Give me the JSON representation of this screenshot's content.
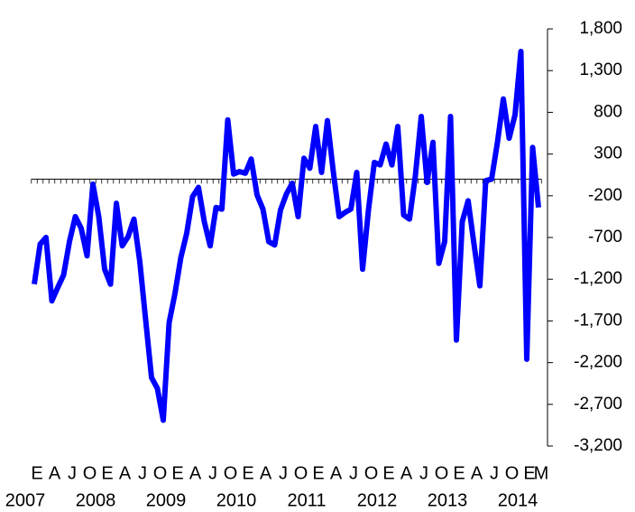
{
  "chart_data": {
    "type": "line",
    "categories": [
      "E",
      null,
      null,
      "A",
      null,
      null,
      "J",
      null,
      null,
      "O",
      null,
      null,
      "E",
      null,
      null,
      "A",
      null,
      null,
      "J",
      null,
      null,
      "O",
      null,
      null,
      "E",
      null,
      null,
      "A",
      null,
      null,
      "J",
      null,
      null,
      "O",
      null,
      null,
      "E",
      null,
      null,
      "A",
      null,
      null,
      "J",
      null,
      null,
      "O",
      null,
      null,
      "E",
      null,
      null,
      "A",
      null,
      null,
      "J",
      null,
      null,
      "O",
      null,
      null,
      "E",
      null,
      null,
      "A",
      null,
      null,
      "J",
      null,
      null,
      "O",
      null,
      null,
      "E",
      null,
      null,
      "A",
      null,
      null,
      "J",
      null,
      null,
      "O",
      null,
      null,
      "E",
      null,
      "M"
    ],
    "category_groups": [
      "2007",
      "2008",
      "2009",
      "2010",
      "2011",
      "2012",
      "2013",
      "2014"
    ],
    "series": [
      {
        "color": "#0000ff",
        "values": [
          -1260,
          -780,
          -700,
          -1460,
          -1300,
          -1150,
          -750,
          -450,
          -590,
          -920,
          -60,
          -450,
          -1080,
          -1260,
          -290,
          -800,
          -690,
          -480,
          -990,
          -1690,
          -2380,
          -2510,
          -2890,
          -1720,
          -1370,
          -940,
          -650,
          -210,
          -100,
          -510,
          -800,
          -340,
          -360,
          710,
          60,
          90,
          70,
          240,
          -190,
          -360,
          -750,
          -790,
          -370,
          -180,
          -50,
          -450,
          250,
          130,
          630,
          80,
          700,
          90,
          -450,
          -400,
          -360,
          80,
          -1080,
          -370,
          200,
          170,
          420,
          170,
          630,
          -430,
          -480,
          40,
          750,
          -40,
          440,
          -1010,
          -750,
          750,
          -1930,
          -510,
          -260,
          -780,
          -1280,
          -20,
          0,
          440,
          960,
          490,
          770,
          1530,
          -2160,
          380,
          -340
        ]
      }
    ],
    "ylim": [
      -3200,
      1800
    ],
    "yticks": [
      {
        "value": 1800,
        "label": "1,800"
      },
      {
        "value": 1300,
        "label": "1,300"
      },
      800,
      300,
      -200,
      -700,
      {
        "value": -1200,
        "label": "-1,200"
      },
      {
        "value": -1700,
        "label": "-1,700"
      },
      {
        "value": -2200,
        "label": "-2,200"
      },
      {
        "value": -2700,
        "label": "-2,700"
      },
      {
        "value": -3200,
        "label": "-3,200"
      }
    ],
    "yaxis_side": "right"
  }
}
